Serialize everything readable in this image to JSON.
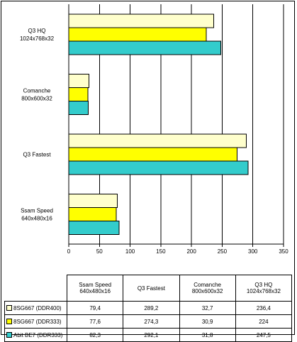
{
  "chart_data": {
    "type": "bar",
    "orientation": "horizontal",
    "categories": [
      "Q3 HQ\n1024x768x32",
      "Comanche\n800x600x32",
      "Q3 Fastest",
      "Ssam Speed\n640x480x16"
    ],
    "series": [
      {
        "name": "8SG667 (DDR400)",
        "color": "#ffffcc",
        "values": [
          236.4,
          32.7,
          289.2,
          79.4
        ]
      },
      {
        "name": "8SG667 (DDR333)",
        "color": "#ffff00",
        "values": [
          224,
          30.9,
          274.3,
          77.6
        ]
      },
      {
        "name": "Abit BE7 (DDR333)",
        "color": "#33cccc",
        "values": [
          247.5,
          31.8,
          292.1,
          82.3
        ]
      }
    ],
    "xlim": [
      0,
      350
    ],
    "xticks": [
      0,
      50,
      100,
      150,
      200,
      250,
      300,
      350
    ],
    "grid": true,
    "legend": "data table below chart"
  },
  "table": {
    "headers": [
      "Ssam Speed\n640x480x16",
      "Q3 Fastest",
      "Comanche\n800x600x32",
      "Q3 HQ\n1024x768x32"
    ],
    "rows": [
      {
        "label": "8SG667 (DDR400)",
        "color": "#ffffcc",
        "cells": [
          "79,4",
          "289,2",
          "32,7",
          "236,4"
        ]
      },
      {
        "label": "8SG667 (DDR333)",
        "color": "#ffff00",
        "cells": [
          "77,6",
          "274,3",
          "30,9",
          "224"
        ]
      },
      {
        "label": "Abit BE7 (DDR333)",
        "color": "#33cccc",
        "cells": [
          "82,3",
          "292,1",
          "31,8",
          "247,5"
        ]
      }
    ]
  }
}
